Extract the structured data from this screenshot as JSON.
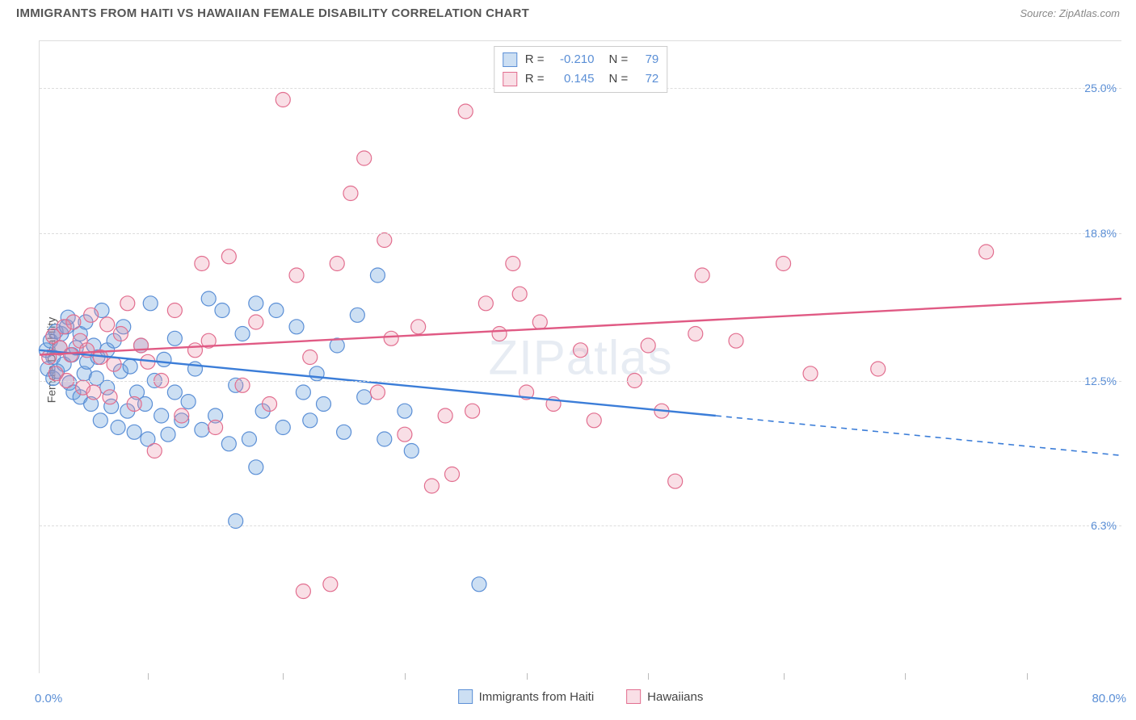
{
  "title": "IMMIGRANTS FROM HAITI VS HAWAIIAN FEMALE DISABILITY CORRELATION CHART",
  "source": "Source: ZipAtlas.com",
  "ylabel": "Female Disability",
  "watermark": "ZIPatlas",
  "chart": {
    "type": "scatter",
    "xlim": [
      0,
      80
    ],
    "ylim": [
      0,
      27
    ],
    "x_axis_labels": {
      "min": "0.0%",
      "max": "80.0%"
    },
    "y_gridlines": [
      {
        "value": 6.3,
        "label": "6.3%"
      },
      {
        "value": 12.5,
        "label": "12.5%"
      },
      {
        "value": 18.8,
        "label": "18.8%"
      },
      {
        "value": 25.0,
        "label": "25.0%"
      }
    ],
    "x_ticks": [
      8,
      18,
      27,
      36,
      45,
      55,
      64,
      73
    ],
    "grid_color": "#dddddd",
    "background_color": "#ffffff",
    "series": [
      {
        "name": "Immigrants from Haiti",
        "color_fill": "rgba(108,162,220,0.35)",
        "color_stroke": "#5b8fd6",
        "line_color": "#3b7dd8",
        "marker_radius": 9,
        "R": "-0.210",
        "N": "79",
        "regression": {
          "x1": 0,
          "y1": 13.8,
          "x2": 50,
          "y2": 11.0,
          "extend_x2": 80,
          "extend_y2": 9.3
        },
        "points": [
          [
            0.5,
            13.8
          ],
          [
            0.8,
            14.2
          ],
          [
            0.6,
            13.0
          ],
          [
            1.0,
            13.5
          ],
          [
            1.2,
            14.6
          ],
          [
            1.0,
            12.6
          ],
          [
            1.5,
            13.9
          ],
          [
            1.3,
            12.9
          ],
          [
            1.6,
            14.5
          ],
          [
            1.8,
            13.2
          ],
          [
            2.0,
            14.8
          ],
          [
            2.2,
            12.4
          ],
          [
            2.4,
            13.6
          ],
          [
            2.1,
            15.2
          ],
          [
            2.5,
            12.0
          ],
          [
            2.7,
            13.9
          ],
          [
            3.0,
            11.8
          ],
          [
            3.0,
            14.5
          ],
          [
            3.3,
            12.8
          ],
          [
            3.5,
            13.3
          ],
          [
            3.4,
            15.0
          ],
          [
            3.8,
            11.5
          ],
          [
            4.0,
            14.0
          ],
          [
            4.2,
            12.6
          ],
          [
            4.3,
            13.5
          ],
          [
            4.5,
            10.8
          ],
          [
            4.6,
            15.5
          ],
          [
            5.0,
            12.2
          ],
          [
            5.0,
            13.8
          ],
          [
            5.3,
            11.4
          ],
          [
            5.5,
            14.2
          ],
          [
            5.8,
            10.5
          ],
          [
            6.0,
            12.9
          ],
          [
            6.2,
            14.8
          ],
          [
            6.5,
            11.2
          ],
          [
            6.7,
            13.1
          ],
          [
            7.0,
            10.3
          ],
          [
            7.2,
            12.0
          ],
          [
            7.5,
            14.0
          ],
          [
            7.8,
            11.5
          ],
          [
            8.0,
            10.0
          ],
          [
            8.2,
            15.8
          ],
          [
            8.5,
            12.5
          ],
          [
            9.0,
            11.0
          ],
          [
            9.2,
            13.4
          ],
          [
            9.5,
            10.2
          ],
          [
            10.0,
            12.0
          ],
          [
            10.0,
            14.3
          ],
          [
            10.5,
            10.8
          ],
          [
            11.0,
            11.6
          ],
          [
            11.5,
            13.0
          ],
          [
            12.0,
            10.4
          ],
          [
            12.5,
            16.0
          ],
          [
            13.0,
            11.0
          ],
          [
            13.5,
            15.5
          ],
          [
            14.0,
            9.8
          ],
          [
            14.5,
            12.3
          ],
          [
            15.0,
            14.5
          ],
          [
            15.5,
            10.0
          ],
          [
            16.0,
            15.8
          ],
          [
            16.5,
            11.2
          ],
          [
            17.5,
            15.5
          ],
          [
            18.0,
            10.5
          ],
          [
            19.0,
            14.8
          ],
          [
            19.5,
            12.0
          ],
          [
            20.0,
            10.8
          ],
          [
            21.0,
            11.5
          ],
          [
            22.0,
            14.0
          ],
          [
            22.5,
            10.3
          ],
          [
            23.5,
            15.3
          ],
          [
            24.0,
            11.8
          ],
          [
            25.0,
            17.0
          ],
          [
            25.5,
            10.0
          ],
          [
            27.0,
            11.2
          ],
          [
            27.5,
            9.5
          ],
          [
            14.5,
            6.5
          ],
          [
            16.0,
            8.8
          ],
          [
            32.5,
            3.8
          ],
          [
            20.5,
            12.8
          ]
        ]
      },
      {
        "name": "Hawaiians",
        "color_fill": "rgba(235,140,165,0.28)",
        "color_stroke": "#e26e8f",
        "line_color": "#e05a84",
        "marker_radius": 9,
        "R": "0.145",
        "N": "72",
        "regression": {
          "x1": 0,
          "y1": 13.6,
          "x2": 80,
          "y2": 16.0
        },
        "points": [
          [
            0.7,
            13.5
          ],
          [
            1.0,
            14.4
          ],
          [
            1.2,
            12.8
          ],
          [
            1.5,
            13.9
          ],
          [
            1.8,
            14.8
          ],
          [
            2.0,
            12.5
          ],
          [
            2.3,
            13.6
          ],
          [
            2.5,
            15.0
          ],
          [
            3.0,
            14.2
          ],
          [
            3.2,
            12.2
          ],
          [
            3.5,
            13.8
          ],
          [
            3.8,
            15.3
          ],
          [
            4.0,
            12.0
          ],
          [
            4.5,
            13.5
          ],
          [
            5.0,
            14.9
          ],
          [
            5.2,
            11.8
          ],
          [
            5.5,
            13.2
          ],
          [
            6.0,
            14.5
          ],
          [
            6.5,
            15.8
          ],
          [
            7.0,
            11.5
          ],
          [
            7.5,
            14.0
          ],
          [
            8.0,
            13.3
          ],
          [
            8.5,
            9.5
          ],
          [
            9.0,
            12.5
          ],
          [
            10.0,
            15.5
          ],
          [
            10.5,
            11.0
          ],
          [
            11.5,
            13.8
          ],
          [
            12.0,
            17.5
          ],
          [
            12.5,
            14.2
          ],
          [
            13.0,
            10.5
          ],
          [
            14.0,
            17.8
          ],
          [
            15.0,
            12.3
          ],
          [
            16.0,
            15.0
          ],
          [
            17.0,
            11.5
          ],
          [
            18.0,
            24.5
          ],
          [
            19.0,
            17.0
          ],
          [
            19.5,
            3.5
          ],
          [
            20.0,
            13.5
          ],
          [
            21.5,
            3.8
          ],
          [
            22.0,
            17.5
          ],
          [
            23.0,
            20.5
          ],
          [
            24.0,
            22.0
          ],
          [
            25.0,
            12.0
          ],
          [
            25.5,
            18.5
          ],
          [
            26.0,
            14.3
          ],
          [
            27.0,
            10.2
          ],
          [
            28.0,
            14.8
          ],
          [
            29.0,
            8.0
          ],
          [
            30.0,
            11.0
          ],
          [
            30.5,
            8.5
          ],
          [
            31.5,
            24.0
          ],
          [
            32.0,
            11.2
          ],
          [
            33.0,
            15.8
          ],
          [
            34.0,
            14.5
          ],
          [
            35.0,
            17.5
          ],
          [
            35.5,
            16.2
          ],
          [
            36.0,
            12.0
          ],
          [
            37.0,
            15.0
          ],
          [
            38.0,
            11.5
          ],
          [
            40.0,
            13.8
          ],
          [
            41.0,
            10.8
          ],
          [
            44.0,
            12.5
          ],
          [
            45.0,
            14.0
          ],
          [
            46.0,
            11.2
          ],
          [
            47.0,
            8.2
          ],
          [
            48.5,
            14.5
          ],
          [
            49.0,
            17.0
          ],
          [
            51.5,
            14.2
          ],
          [
            55.0,
            17.5
          ],
          [
            57.0,
            12.8
          ],
          [
            62.0,
            13.0
          ],
          [
            70.0,
            18.0
          ]
        ]
      }
    ],
    "bottom_legend": [
      {
        "label": "Immigrants from Haiti",
        "fill": "rgba(108,162,220,0.35)",
        "stroke": "#5b8fd6"
      },
      {
        "label": "Hawaiians",
        "fill": "rgba(235,140,165,0.28)",
        "stroke": "#e26e8f"
      }
    ]
  }
}
